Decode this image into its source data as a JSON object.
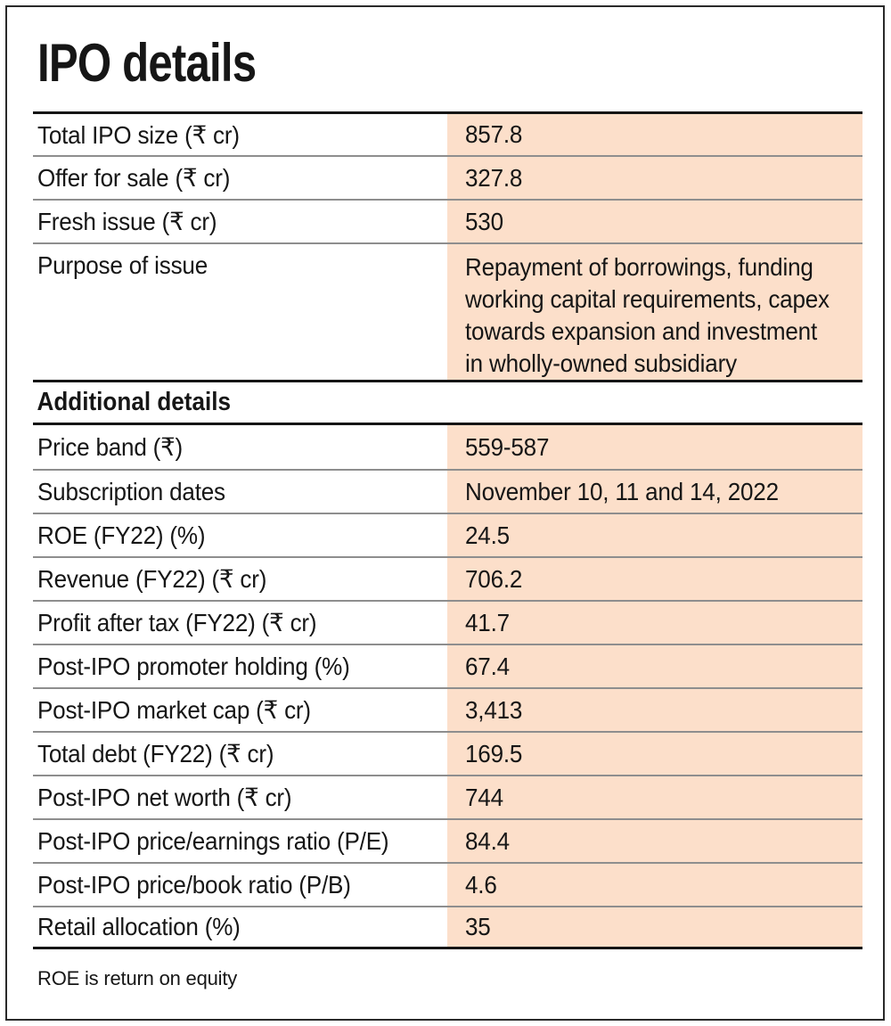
{
  "title": "IPO details",
  "colors": {
    "value_column_bg": "#fcdfca",
    "section_rule": "#151515",
    "row_separator": "#8e8e8e",
    "text": "#161616"
  },
  "footnote": "ROE is return on equity",
  "section2_header": "Additional details",
  "chart_data": {
    "type": "table",
    "title": "IPO details",
    "sections": [
      {
        "header": null,
        "rows": [
          [
            "Total IPO size (₹ cr)",
            "857.8"
          ],
          [
            "Offer for sale (₹ cr)",
            "327.8"
          ],
          [
            "Fresh issue (₹ cr)",
            "530"
          ],
          [
            "Purpose of issue",
            "Repayment of borrowings, funding working capital requirements, capex towards expansion and investment in wholly-owned subsidiary"
          ]
        ]
      },
      {
        "header": "Additional details",
        "rows": [
          [
            "Price band (₹)",
            "559-587"
          ],
          [
            "Subscription dates",
            "November 10, 11 and 14, 2022"
          ],
          [
            "ROE (FY22) (%)",
            "24.5"
          ],
          [
            "Revenue (FY22) (₹ cr)",
            "706.2"
          ],
          [
            "Profit after tax (FY22) (₹ cr)",
            "41.7"
          ],
          [
            "Post-IPO promoter holding (%)",
            "67.4"
          ],
          [
            "Post-IPO market cap (₹ cr)",
            "3,413"
          ],
          [
            "Total debt (FY22) (₹ cr)",
            "169.5"
          ],
          [
            "Post-IPO net worth (₹ cr)",
            "744"
          ],
          [
            "Post-IPO price/earnings ratio (P/E)",
            "84.4"
          ],
          [
            "Post-IPO price/book ratio (P/B)",
            "4.6"
          ],
          [
            "Retail allocation (%)",
            "35"
          ]
        ]
      }
    ],
    "footnote": "ROE is return on equity"
  },
  "rows1": [
    {
      "label": "Total IPO size (₹ cr)",
      "value": "857.8"
    },
    {
      "label": "Offer for sale (₹ cr)",
      "value": "327.8"
    },
    {
      "label": "Fresh issue (₹ cr)",
      "value": "530"
    },
    {
      "label": "Purpose of issue",
      "value": "Repayment of borrowings, funding\nworking capital requirements, capex\ntowards expansion and investment\nin wholly-owned subsidiary"
    }
  ],
  "rows2": [
    {
      "label": "Price band (₹)",
      "value": "559-587"
    },
    {
      "label": "Subscription dates",
      "value": "November 10, 11 and 14, 2022"
    },
    {
      "label": "ROE (FY22) (%)",
      "value": "24.5"
    },
    {
      "label": "Revenue (FY22) (₹ cr)",
      "value": "706.2"
    },
    {
      "label": "Profit after tax (FY22) (₹ cr)",
      "value": "41.7"
    },
    {
      "label": "Post-IPO promoter holding (%)",
      "value": "67.4"
    },
    {
      "label": "Post-IPO market cap (₹ cr)",
      "value": "3,413"
    },
    {
      "label": "Total debt (FY22) (₹ cr)",
      "value": "169.5"
    },
    {
      "label": "Post-IPO net worth (₹ cr)",
      "value": "744"
    },
    {
      "label": "Post-IPO price/earnings ratio (P/E)",
      "value": "84.4"
    },
    {
      "label": "Post-IPO price/book ratio (P/B)",
      "value": "4.6"
    },
    {
      "label": "Retail allocation (%)",
      "value": "35"
    }
  ]
}
